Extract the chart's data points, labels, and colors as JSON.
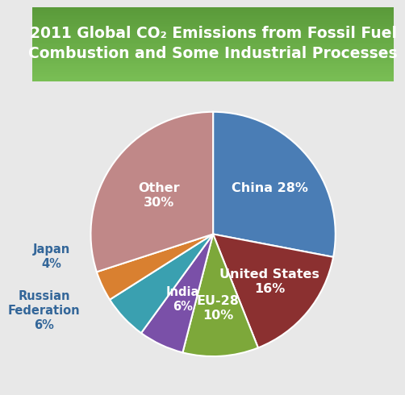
{
  "title_line1": "2011 Global CO₂ Emissions from Fossil Fuel",
  "title_line2": "Combustion and Some Industrial Processes",
  "slices": [
    {
      "label": "China 28%",
      "value": 28,
      "color": "#4a7db5"
    },
    {
      "label": "United States\n16%",
      "value": 16,
      "color": "#8b3030"
    },
    {
      "label": "EU-28\n10%",
      "value": 10,
      "color": "#7da83a"
    },
    {
      "label": "India\n6%",
      "value": 6,
      "color": "#7a50a8"
    },
    {
      "label": "Russian\nFederation\n6%",
      "value": 6,
      "color": "#3aa0b0"
    },
    {
      "label": "Japan\n4%",
      "value": 4,
      "color": "#d98030"
    },
    {
      "label": "Other\n30%",
      "value": 30,
      "color": "#c08888"
    }
  ],
  "title_bg_top": "#5a9a3a",
  "title_bg_bot": "#7abf55",
  "title_color": "#ffffff",
  "bg_color": "#e8e8e8",
  "label_color": "#ffffff",
  "outside_label_color": "#336699",
  "title_fontsize": 13.5,
  "label_fontsize_large": 11.5,
  "label_fontsize_small": 10.5
}
